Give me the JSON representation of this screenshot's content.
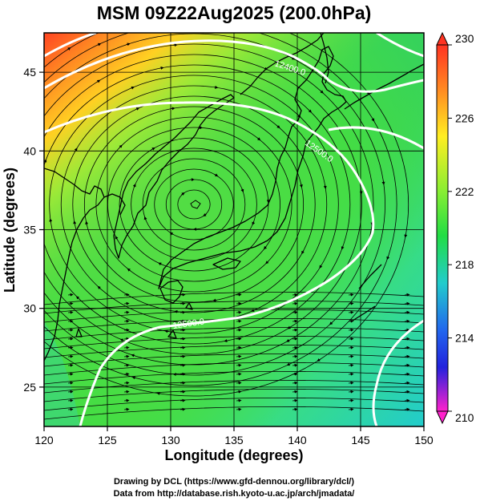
{
  "title": "MSM 09Z22Aug2025 (200.0hPa)",
  "xlabel": "Longitude (degrees)",
  "ylabel": "Latitude  (degrees)",
  "xticks": [
    "120",
    "125",
    "130",
    "135",
    "140",
    "145",
    "150"
  ],
  "yticks": [
    "25",
    "30",
    "35",
    "40",
    "45"
  ],
  "colorbar": {
    "labels": [
      "230",
      "226",
      "222",
      "218",
      "214",
      "210"
    ],
    "values": [
      230,
      226,
      222,
      218,
      214,
      210
    ],
    "min": 210,
    "max": 230
  },
  "contour_labels": [
    "12400.0",
    "12500.0",
    "12500.0"
  ],
  "credits": {
    "line1": "Drawing by DCL (https://www.gfd-dennou.org/library/dcl/)",
    "line2": "Data from http://database.rish.kyoto-u.ac.jp/arch/jmadata/"
  },
  "map": {
    "lon_range": [
      120,
      150
    ],
    "lat_range": [
      22.5,
      47.5
    ],
    "gridlines": true
  },
  "colors": {
    "warm": "#ff3300",
    "mid": "#44dd44",
    "cool": "#22cccc",
    "contour": "#ffffff",
    "streamline": "#000000"
  }
}
